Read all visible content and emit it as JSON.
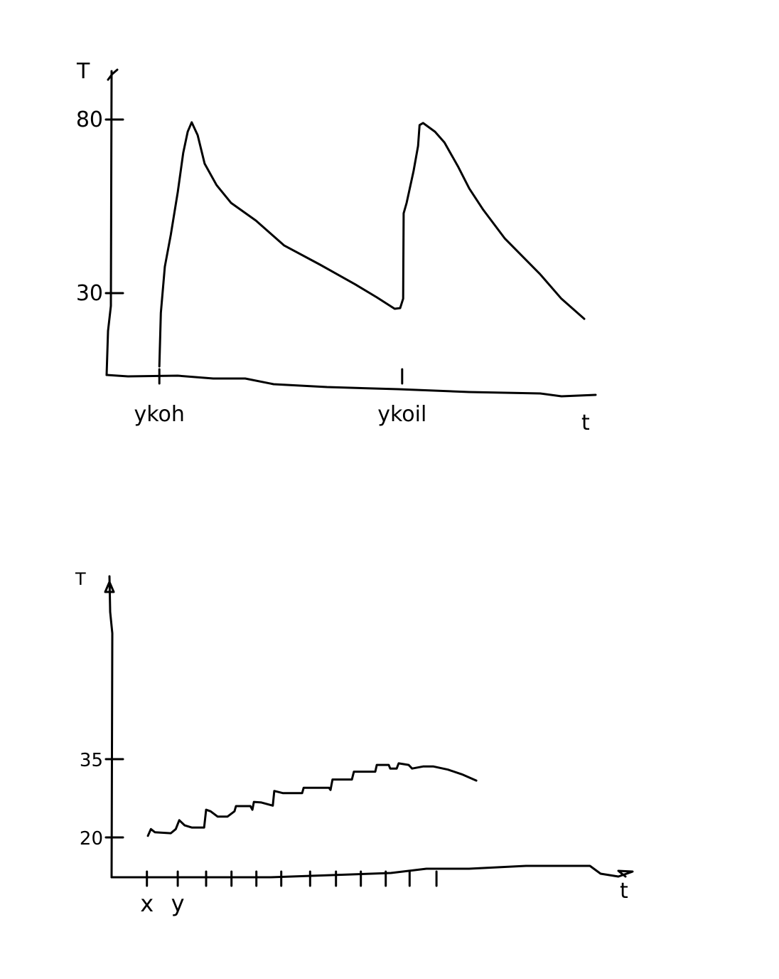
{
  "chart_data": [
    {
      "type": "line",
      "title": "",
      "ylabel": "T",
      "xlabel": "t",
      "ylim": [
        0,
        95
      ],
      "xlim": [
        0,
        100
      ],
      "y_ticks": [
        {
          "value": 80,
          "label": "80"
        },
        {
          "value": 30,
          "label": "30"
        }
      ],
      "x_ticks": [
        {
          "value": 10.6,
          "label": "ykoh"
        },
        {
          "value": 59.4,
          "label": "ykoil"
        }
      ],
      "grid": false,
      "series": [
        {
          "name": "T",
          "points": [
            [
              10.6,
              8.9
            ],
            [
              10.9,
              24.3
            ],
            [
              11.7,
              37.6
            ],
            [
              12.9,
              46.8
            ],
            [
              14.3,
              59.1
            ],
            [
              15.4,
              70.4
            ],
            [
              16.3,
              76.5
            ],
            [
              17.1,
              79.2
            ],
            [
              18.3,
              75.5
            ],
            [
              19.7,
              67.3
            ],
            [
              22.1,
              61.1
            ],
            [
              25.0,
              56.0
            ],
            [
              30.0,
              50.9
            ],
            [
              35.7,
              43.7
            ],
            [
              42.9,
              38.2
            ],
            [
              50.0,
              32.5
            ],
            [
              54.3,
              28.8
            ],
            [
              57.9,
              25.5
            ],
            [
              59.0,
              25.7
            ],
            [
              59.6,
              28.4
            ],
            [
              59.7,
              53.0
            ],
            [
              60.3,
              56.0
            ],
            [
              61.7,
              65.2
            ],
            [
              62.6,
              72.4
            ],
            [
              62.9,
              78.4
            ],
            [
              63.6,
              79.0
            ],
            [
              66.0,
              76.5
            ],
            [
              67.9,
              73.4
            ],
            [
              70.7,
              66.3
            ],
            [
              72.9,
              60.1
            ],
            [
              75.7,
              54.0
            ],
            [
              80.0,
              45.8
            ],
            [
              87.1,
              35.5
            ],
            [
              91.4,
              28.4
            ],
            [
              96.0,
              22.6
            ]
          ]
        }
      ]
    },
    {
      "type": "line",
      "title": "",
      "ylabel": "T",
      "xlabel": "t",
      "ylim": [
        0,
        60
      ],
      "xlim": [
        0,
        105
      ],
      "y_ticks": [
        {
          "value": 35,
          "label": "35"
        },
        {
          "value": 20,
          "label": "20"
        }
      ],
      "x_ticks": [
        {
          "value": 7.1,
          "label": "x"
        },
        {
          "value": 13.3,
          "label": "y"
        },
        {
          "value": 19.0,
          "label": ""
        },
        {
          "value": 24.1,
          "label": ""
        },
        {
          "value": 29.1,
          "label": ""
        },
        {
          "value": 34.1,
          "label": ""
        },
        {
          "value": 39.9,
          "label": ""
        },
        {
          "value": 45.1,
          "label": ""
        },
        {
          "value": 50.1,
          "label": ""
        },
        {
          "value": 55.1,
          "label": ""
        },
        {
          "value": 59.9,
          "label": ""
        },
        {
          "value": 65.3,
          "label": ""
        }
      ],
      "grid": false,
      "series": [
        {
          "name": "T",
          "points": [
            [
              7.3,
              20.3
            ],
            [
              7.9,
              21.6
            ],
            [
              8.7,
              21.0
            ],
            [
              11.9,
              20.8
            ],
            [
              12.9,
              21.6
            ],
            [
              13.6,
              23.3
            ],
            [
              14.7,
              22.3
            ],
            [
              16.1,
              21.9
            ],
            [
              18.6,
              21.9
            ],
            [
              19.0,
              25.3
            ],
            [
              19.9,
              25.0
            ],
            [
              21.3,
              24.0
            ],
            [
              23.3,
              24.0
            ],
            [
              24.7,
              25.0
            ],
            [
              25.0,
              26.0
            ],
            [
              27.9,
              26.0
            ],
            [
              28.3,
              25.3
            ],
            [
              28.6,
              26.8
            ],
            [
              30.1,
              26.7
            ],
            [
              32.4,
              26.1
            ],
            [
              32.7,
              28.9
            ],
            [
              34.4,
              28.5
            ],
            [
              38.3,
              28.5
            ],
            [
              38.6,
              29.5
            ],
            [
              43.7,
              29.5
            ],
            [
              44.0,
              29.1
            ],
            [
              44.4,
              31.1
            ],
            [
              48.3,
              31.1
            ],
            [
              48.7,
              32.6
            ],
            [
              53.0,
              32.6
            ],
            [
              53.3,
              33.9
            ],
            [
              55.7,
              33.9
            ],
            [
              56.0,
              33.2
            ],
            [
              57.3,
              33.2
            ],
            [
              57.7,
              34.2
            ],
            [
              59.7,
              33.9
            ],
            [
              60.4,
              33.2
            ],
            [
              62.6,
              33.6
            ],
            [
              64.7,
              33.6
            ],
            [
              67.6,
              33.0
            ],
            [
              70.4,
              32.1
            ],
            [
              73.3,
              30.9
            ]
          ]
        }
      ]
    }
  ]
}
